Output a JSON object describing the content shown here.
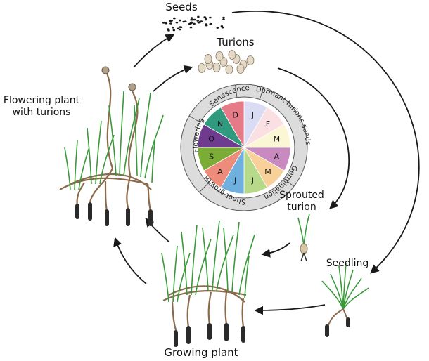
{
  "stages": {
    "seeds": "Seeds",
    "turions": "Turions",
    "flowering_line1": "Flowering plant",
    "flowering_line2": "with turions",
    "sprouted_line1": "Sprouted",
    "sprouted_line2": "turion",
    "seedling": "Seedling",
    "growing": "Growing plant"
  },
  "calendar": {
    "months": [
      {
        "letter": "J",
        "color": "#d9dcf3"
      },
      {
        "letter": "F",
        "color": "#fbe0e3"
      },
      {
        "letter": "M",
        "color": "#fbf6d3"
      },
      {
        "letter": "A",
        "color": "#c98ac0"
      },
      {
        "letter": "M",
        "color": "#f8d09a"
      },
      {
        "letter": "J",
        "color": "#b7d98a"
      },
      {
        "letter": "J",
        "color": "#6fb0de"
      },
      {
        "letter": "A",
        "color": "#ed8c7a"
      },
      {
        "letter": "S",
        "color": "#7aac36"
      },
      {
        "letter": "O",
        "color": "#6e3b8e"
      },
      {
        "letter": "N",
        "color": "#2f9a7e"
      },
      {
        "letter": "D",
        "color": "#e67a86"
      }
    ],
    "phases": [
      {
        "label": "Dormant turions seeds"
      },
      {
        "label": "Germination"
      },
      {
        "label": "Shoot growth"
      },
      {
        "label": "Flowering"
      },
      {
        "label": "Senescence"
      }
    ]
  },
  "colors": {
    "arrow": "#1a1a1a",
    "leaf": "#3a9a3a",
    "stem": "#8a6a4a",
    "root": "#2a2a2a",
    "ring": "#dcdcdc"
  }
}
